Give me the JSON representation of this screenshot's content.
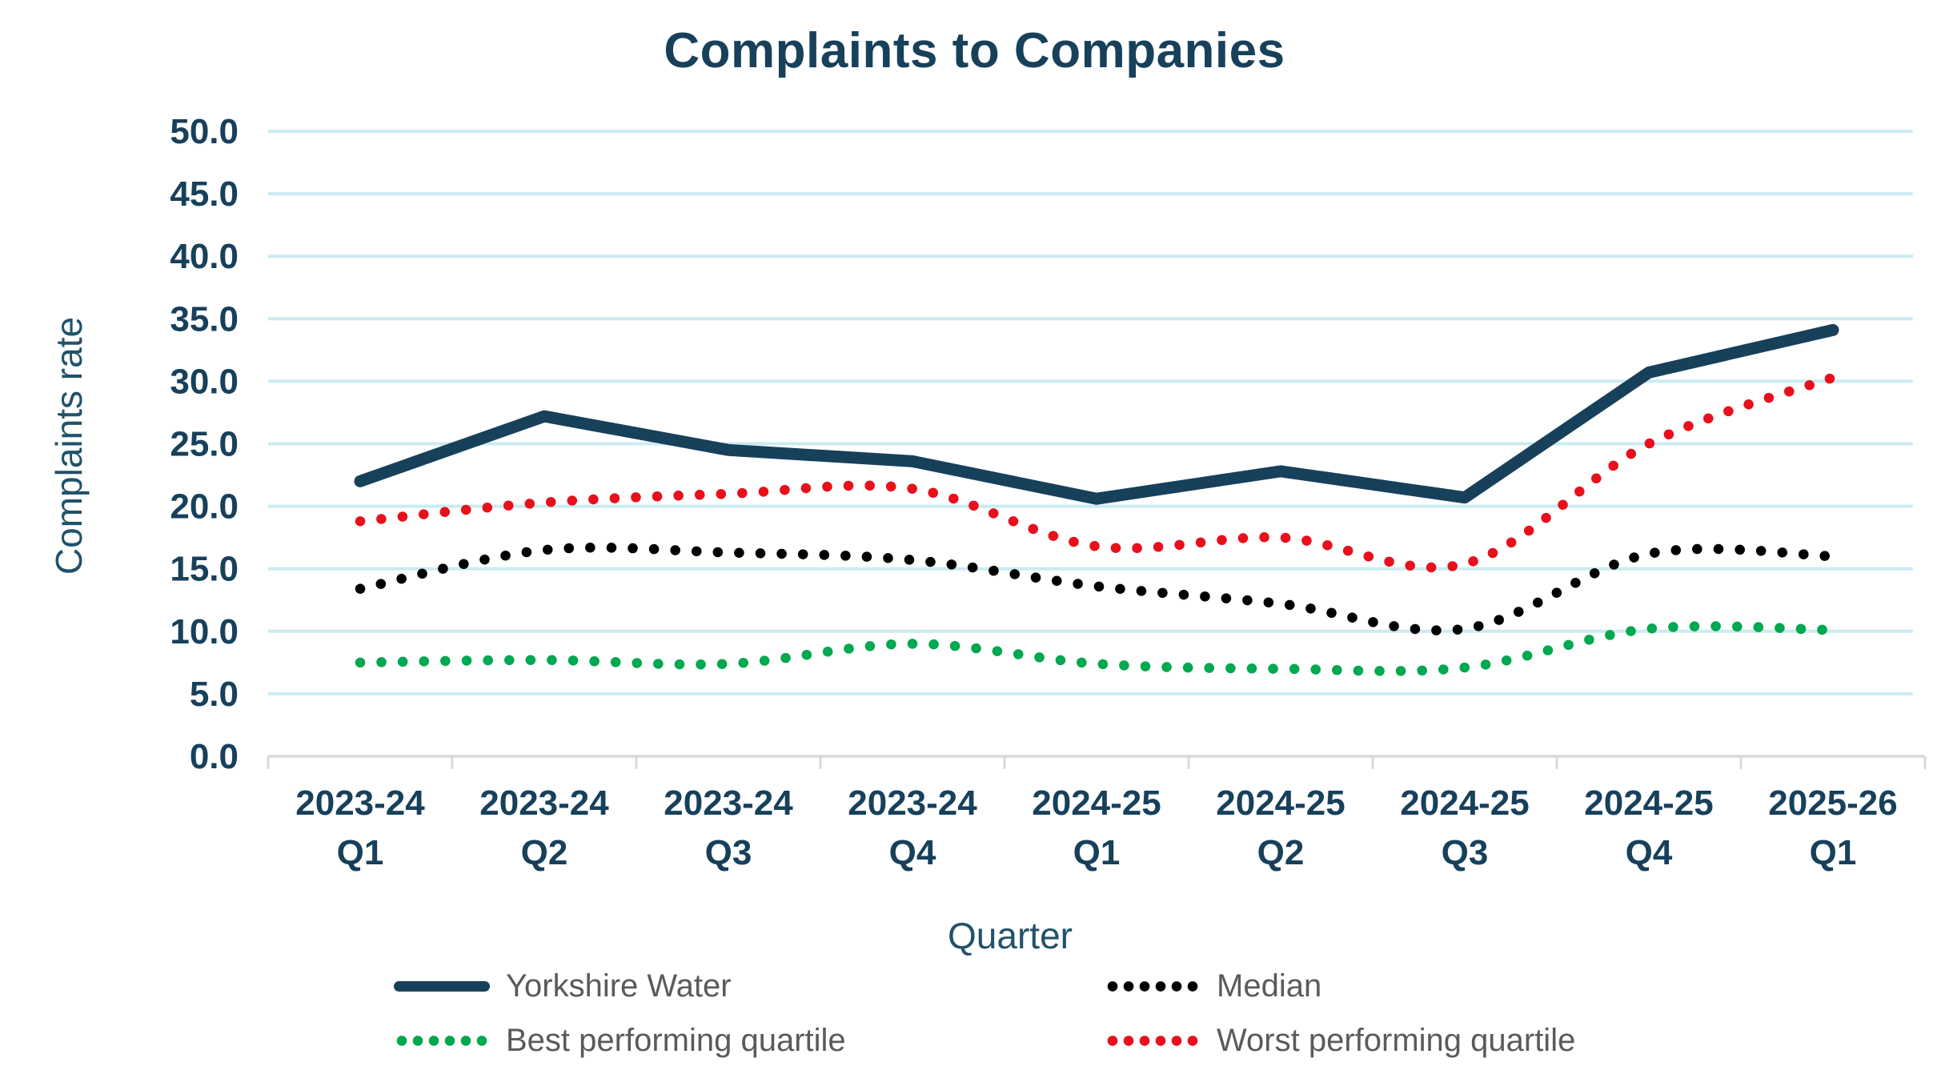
{
  "title": "Complaints to Companies",
  "y_axis": {
    "title": "Complaints rate",
    "tick_labels": [
      "0.0",
      "5.0",
      "10.0",
      "15.0",
      "20.0",
      "25.0",
      "30.0",
      "35.0",
      "40.0",
      "45.0",
      "50.0"
    ]
  },
  "x_axis": {
    "title": "Quarter"
  },
  "legend": {
    "items": [
      {
        "label": "Yorkshire Water",
        "style": "solid",
        "color": "#17405b"
      },
      {
        "label": "Median",
        "style": "dotted",
        "color": "#000000"
      },
      {
        "label": "Best performing quartile",
        "style": "dotted",
        "color": "#00a84f"
      },
      {
        "label": "Worst performing quartile",
        "style": "dotted",
        "color": "#e8101c"
      }
    ]
  },
  "colors": {
    "title": "#17405b",
    "tick_label": "#17405b",
    "axis_title": "#21526b",
    "legend_text": "#5a5a5a",
    "gridline": "#c9ecf2",
    "axis_line": "#d9d9d9"
  },
  "chart_data": {
    "type": "line",
    "title": "Complaints to Companies",
    "xlabel": "Quarter",
    "ylabel": "Complaints rate",
    "ylim": [
      0,
      50
    ],
    "ytick_step": 5,
    "grid": "horizontal",
    "legend_position": "bottom",
    "categories": [
      "2023-24 Q1",
      "2023-24 Q2",
      "2023-24 Q3",
      "2023-24 Q4",
      "2024-25 Q1",
      "2024-25 Q2",
      "2024-25 Q3",
      "2024-25 Q4",
      "2025-26 Q1"
    ],
    "series": [
      {
        "name": "Yorkshire Water",
        "color": "#17405b",
        "style": "solid",
        "values": [
          22.0,
          27.2,
          24.5,
          23.6,
          20.6,
          22.8,
          20.7,
          30.7,
          34.1
        ]
      },
      {
        "name": "Median",
        "color": "#000000",
        "style": "dotted",
        "values": [
          13.4,
          16.5,
          16.3,
          15.7,
          13.6,
          12.2,
          10.2,
          16.2,
          16.0
        ]
      },
      {
        "name": "Best performing quartile",
        "color": "#00a84f",
        "style": "dotted",
        "values": [
          7.5,
          7.7,
          7.4,
          9.0,
          7.4,
          7.0,
          7.1,
          10.2,
          10.1
        ]
      },
      {
        "name": "Worst performing quartile",
        "color": "#e8101c",
        "style": "dotted",
        "values": [
          18.8,
          20.3,
          21.0,
          21.4,
          16.8,
          17.5,
          15.4,
          25.0,
          30.3
        ]
      }
    ]
  }
}
